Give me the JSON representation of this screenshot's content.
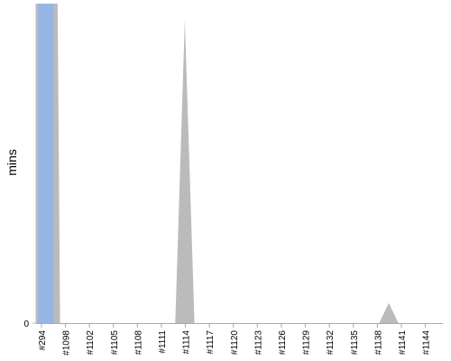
{
  "chart_data": {
    "type": "area",
    "title": "",
    "xlabel": "",
    "ylabel": "mins",
    "x": [
      "#294",
      "#1098",
      "#1102",
      "#1105",
      "#1108",
      "#1111",
      "#1114",
      "#1117",
      "#1120",
      "#1123",
      "#1126",
      "#1129",
      "#1132",
      "#1135",
      "#1138",
      "#1141",
      "#1144"
    ],
    "y_ticks": [
      "0"
    ],
    "grid": false,
    "legend": "none",
    "series": [
      {
        "color": "#bbbbbb",
        "points": [
          {
            "x": 0,
            "y": 100
          },
          {
            "x": 0.9,
            "y": 100
          },
          {
            "x": 1.0,
            "y": 0
          },
          {
            "x": 5.8,
            "y": 0
          },
          {
            "x": 6.2,
            "y": 95
          },
          {
            "x": 6.6,
            "y": 0
          },
          {
            "x": 14.3,
            "y": 0
          },
          {
            "x": 14.7,
            "y": 6.3
          },
          {
            "x": 15.1,
            "y": 0
          },
          {
            "x": 17.3,
            "y": 0
          }
        ]
      }
    ],
    "highlight_bar": {
      "color": "#95b6e2",
      "x_start": 0,
      "x_end": 0.65,
      "y": 100
    },
    "ylim": [
      0,
      100
    ],
    "xlim": [
      0,
      17.3
    ]
  }
}
